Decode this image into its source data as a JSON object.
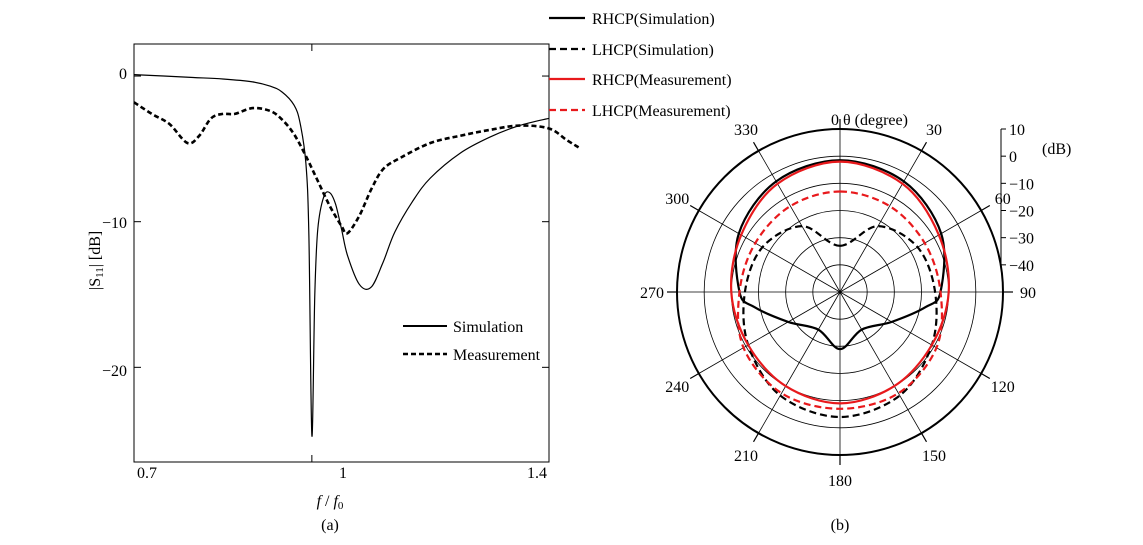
{
  "chart_data": [
    {
      "type": "line",
      "panel_label": "(a)",
      "xlabel_prefix": "f",
      "xlabel_mid": " / ",
      "xlabel_base": "f",
      "xlabel_sub": "0",
      "ylabel": "|S",
      "ylabel_sub": "11",
      "ylabel_suffix": "| [dB]",
      "xlim": [
        0.7,
        1.4
      ],
      "ylim": [
        -26.5,
        2.2
      ],
      "xticks": [
        0.7,
        1,
        1.4
      ],
      "xtick_labels": [
        "0.7",
        "1",
        "1.4"
      ],
      "yticks": [
        0,
        -10,
        -20
      ],
      "ytick_labels": [
        "0",
        "−10",
        "−20"
      ],
      "legend_position": "lower-right",
      "series": [
        {
          "name": "Simulation",
          "color": "#000000",
          "dash": "solid",
          "x": [
            0.7,
            0.75,
            0.8,
            0.85,
            0.9,
            0.93,
            0.95,
            0.97,
            0.98,
            0.99,
            0.995,
            1.0,
            1.005,
            1.01,
            1.02,
            1.03,
            1.04,
            1.05,
            1.06,
            1.08,
            1.1,
            1.12,
            1.14,
            1.17,
            1.2,
            1.25,
            1.3,
            1.35,
            1.4
          ],
          "values": [
            0.1,
            0.0,
            -0.1,
            -0.2,
            -0.4,
            -0.7,
            -1.1,
            -2.0,
            -3.2,
            -6.0,
            -11.0,
            -24.7,
            -15.0,
            -10.5,
            -8.3,
            -8.0,
            -8.8,
            -10.5,
            -12.3,
            -14.3,
            -14.5,
            -12.8,
            -10.7,
            -8.6,
            -7.0,
            -5.3,
            -4.2,
            -3.4,
            -2.9
          ]
        },
        {
          "name": "Measurement",
          "color": "#000000",
          "dash": "dashed",
          "x": [
            0.7,
            0.73,
            0.76,
            0.79,
            0.81,
            0.83,
            0.85,
            0.87,
            0.9,
            0.93,
            0.95,
            0.97,
            0.99,
            1.01,
            1.03,
            1.05,
            1.06,
            1.08,
            1.1,
            1.12,
            1.15,
            1.2,
            1.25,
            1.3,
            1.35,
            1.4,
            1.43,
            1.45
          ],
          "values": [
            -1.8,
            -2.6,
            -3.3,
            -4.6,
            -4.1,
            -2.9,
            -2.6,
            -2.6,
            -2.2,
            -2.4,
            -3.0,
            -4.0,
            -5.5,
            -7.2,
            -8.9,
            -10.3,
            -10.8,
            -9.6,
            -7.8,
            -6.4,
            -5.6,
            -4.6,
            -4.1,
            -3.7,
            -3.4,
            -3.6,
            -4.4,
            -4.9
          ]
        }
      ]
    },
    {
      "type": "polar",
      "panel_label": "(b)",
      "angle_title": "θ (degree)",
      "angle_ticks": [
        0,
        30,
        60,
        90,
        120,
        150,
        180,
        210,
        240,
        270,
        300,
        330
      ],
      "angle_tick_labels": [
        "0",
        "30",
        "60",
        "90",
        "120",
        "150",
        "180",
        "210",
        "240",
        "270",
        "300",
        "330"
      ],
      "r_unit": "(dB)",
      "r_range": [
        -50,
        10
      ],
      "r_ticks": [
        10,
        0,
        -10,
        -20,
        -30,
        -40
      ],
      "r_tick_labels": [
        "10",
        "0",
        "−10",
        "−20",
        "−30",
        "−40"
      ],
      "legend_position": "top",
      "series": [
        {
          "name": "RHCP(Simulation)",
          "color": "#000000",
          "dash": "solid",
          "theta": [
            0,
            30,
            60,
            90,
            100,
            120,
            150,
            180,
            210,
            240,
            260,
            270,
            300,
            330,
            360
          ],
          "values": [
            -1.5,
            -3,
            -7,
            -13,
            -18,
            -28,
            -34,
            -29,
            -34,
            -28,
            -18,
            -13,
            -7,
            -3,
            -1.5
          ]
        },
        {
          "name": "LHCP(Simulation)",
          "color": "#000000",
          "dash": "dashed",
          "theta": [
            0,
            30,
            60,
            90,
            120,
            150,
            180,
            210,
            240,
            270,
            300,
            330,
            360
          ],
          "values": [
            -33,
            -22,
            -17,
            -15,
            -11,
            -6,
            -4,
            -6,
            -11,
            -15,
            -17,
            -22,
            -33
          ]
        },
        {
          "name": "RHCP(Measurement)",
          "color": "#e8191c",
          "dash": "solid",
          "theta": [
            0,
            30,
            60,
            90,
            120,
            150,
            180,
            210,
            240,
            270,
            300,
            330,
            360
          ],
          "values": [
            -2,
            -4,
            -8,
            -10,
            -11,
            -10,
            -9,
            -10,
            -11,
            -10,
            -8,
            -4,
            -2
          ]
        },
        {
          "name": "LHCP(Measurement)",
          "color": "#e8191c",
          "dash": "dashed",
          "theta": [
            0,
            30,
            60,
            90,
            120,
            150,
            180,
            210,
            240,
            270,
            300,
            330,
            360
          ],
          "values": [
            -13,
            -13.5,
            -14,
            -13,
            -9,
            -7,
            -7,
            -7,
            -9,
            -13,
            -14,
            -13.5,
            -13
          ]
        }
      ]
    }
  ]
}
